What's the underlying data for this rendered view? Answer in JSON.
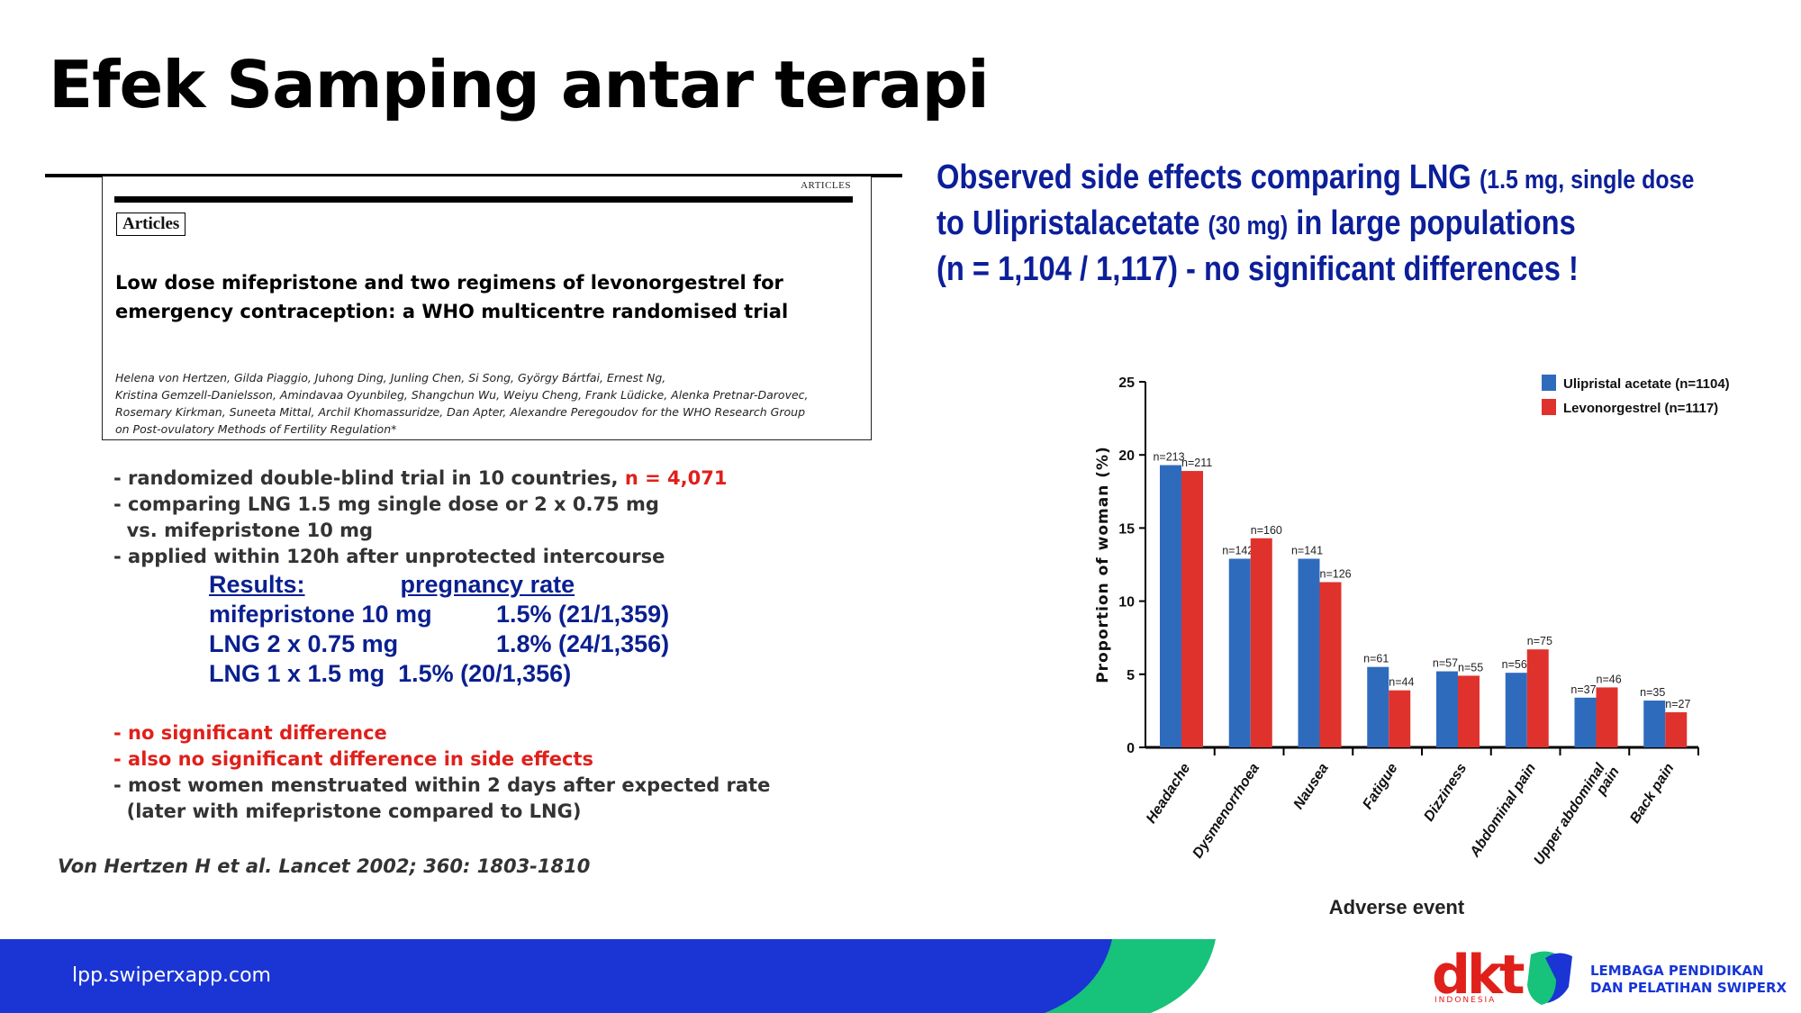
{
  "page_title": "Efek Samping antar terapi",
  "article": {
    "header": "ARTICLES",
    "tag": "Articles",
    "title_line1": "Low dose mifepristone and two regimens of levonorgestrel for",
    "title_line2": "emergency contraception: a WHO multicentre randomised trial",
    "authors_line1": "Helena von Hertzen, Gilda Piaggio, Juhong Ding, Junling Chen, Si Song, György Bártfai, Ernest Ng,",
    "authors_line2": "Kristina Gemzell-Danielsson, Amindavaa Oyunbileg, Shangchun Wu, Weiyu Cheng, Frank Lüdicke, Alenka Pretnar-Darovec,",
    "authors_line3": "Rosemary Kirkman, Suneeta Mittal, Archil Khomassuridze, Dan Apter, Alexandre Peregoudov for the WHO Research Group",
    "authors_line4": "on Post-ovulatory Methods of Fertility Regulation*"
  },
  "notes": {
    "l1": "- randomized double-blind trial in 10 countries, ",
    "l1_red": "n = 4,071",
    "l2": "- comparing LNG 1.5 mg single dose or 2 x 0.75 mg",
    "l3": "  vs. mifepristone 10 mg",
    "l4": "- applied within 120h after unprotected intercourse",
    "r1": "- no significant difference",
    "r2": "- also no significant difference in side effects",
    "l5": "- most women menstruated within 2 days after expected rate",
    "l6": "  (later with mifepristone compared to LNG)"
  },
  "results": {
    "header_a": "Results:",
    "header_b": "pregnancy rate",
    "row1_label": "mifepristone 10 mg",
    "row1_value": "1.5% (21/1,359)",
    "row2_label": "LNG 2 x 0.75 mg",
    "row2_value": "1.8% (24/1,356)",
    "row3": "LNG 1 x 1.5 mg  1.5% (20/1,356)"
  },
  "citation": "Von Hertzen H et al. Lancet 2002; 360: 1803-1810",
  "observed": {
    "a1": "Observed side effects comparing LNG ",
    "a2": "(1.5 mg, single dose",
    "b1": "to Ulipristalacetate ",
    "b2": "(30 mg)",
    "b3": " in large populations",
    "c": "(n = 1,104 / 1,117) - no significant differences !"
  },
  "chart_data": {
    "type": "bar",
    "xlabel": "Adverse event",
    "ylabel": "Proportion of woman (%)",
    "ylim": [
      0,
      25
    ],
    "yticks": [
      0,
      5,
      10,
      15,
      20,
      25
    ],
    "categories": [
      "Headache",
      "Dysmenorrhoea",
      "Nausea",
      "Fatigue",
      "Dizziness",
      "Abdominal pain",
      "Upper abdominal pain",
      "Back pain"
    ],
    "series": [
      {
        "name": "Ulipristal acetate (n=1104)",
        "color": "#2f6bbd",
        "values": [
          19.3,
          12.9,
          12.9,
          5.5,
          5.2,
          5.1,
          3.4,
          3.2
        ],
        "labels": [
          "n=213",
          "n=142",
          "n=141",
          "n=61",
          "n=57",
          "n=56",
          "n=37",
          "n=35"
        ]
      },
      {
        "name": "Levonorgestrel (n=1117)",
        "color": "#e0322c",
        "values": [
          18.9,
          14.3,
          11.3,
          3.9,
          4.9,
          6.7,
          4.1,
          2.4
        ],
        "labels": [
          "n=211",
          "n=160",
          "n=126",
          "n=44",
          "n=55",
          "n=75",
          "n=46",
          "n=27"
        ]
      }
    ],
    "legend": "top-right",
    "grid": false
  },
  "footer": {
    "url": "lpp.swiperxapp.com",
    "dkt_logo": "dkt",
    "dkt_sub": "INDONESIA",
    "lp_line1": "LEMBAGA PENDIDIKAN",
    "lp_line2": "DAN PELATIHAN SWIPERX",
    "colors": {
      "blue": "#1a35d4",
      "green": "#17c27a"
    }
  }
}
